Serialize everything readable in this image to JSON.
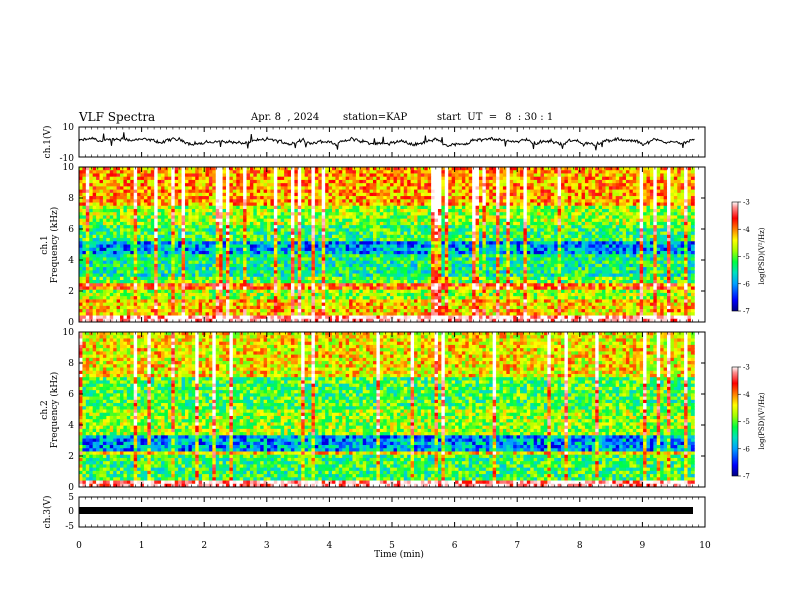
{
  "header": {
    "title": "VLF Spectra",
    "date": "Apr. 8  , 2024",
    "station_label": "station=",
    "station": "KAP",
    "start_label": "start  UT  =",
    "start_time": "8  : 30 : 1"
  },
  "chart_data": [
    {
      "type": "line",
      "panel": "ch1-waveform",
      "ylabel": "ch.1(V)",
      "ylim": [
        -10,
        10
      ],
      "yticks": [
        "10",
        "-10"
      ],
      "x_range_min": [
        0,
        9.83
      ],
      "y_typical_range": [
        -3,
        4
      ]
    },
    {
      "type": "heatmap",
      "panel": "ch1-spectrogram",
      "ylabel_lines": [
        "ch.1",
        "Frequency  (kHz)"
      ],
      "ylim": [
        0,
        10
      ],
      "yticks": [
        "0",
        "2",
        "4",
        "6",
        "8",
        "10"
      ],
      "bands_khz": [
        {
          "from": 0,
          "to": 0.5,
          "level": -3.2
        },
        {
          "from": 0.5,
          "to": 1.4,
          "level": -4.5
        },
        {
          "from": 1.4,
          "to": 2.0,
          "level": -5.0
        },
        {
          "from": 2.0,
          "to": 2.4,
          "level": -4.1
        },
        {
          "from": 2.4,
          "to": 3.0,
          "level": -5.2
        },
        {
          "from": 3.0,
          "to": 4.4,
          "level": -5.6
        },
        {
          "from": 4.4,
          "to": 5.3,
          "level": -6.1
        },
        {
          "from": 5.3,
          "to": 6.2,
          "level": -5.4
        },
        {
          "from": 6.2,
          "to": 7.5,
          "level": -5.0
        },
        {
          "from": 7.5,
          "to": 10,
          "level": -4.3
        }
      ],
      "colorbar": {
        "label": "log(PSD)(V²/Hz)",
        "ticks": [
          "-3",
          "-4",
          "-5",
          "-6",
          "-7"
        ],
        "range": [
          -7,
          -3
        ]
      }
    },
    {
      "type": "heatmap",
      "panel": "ch2-spectrogram",
      "ylabel_lines": [
        "ch.2",
        "Frequency  (kHz)"
      ],
      "ylim": [
        0,
        10
      ],
      "yticks": [
        "0",
        "2",
        "4",
        "6",
        "8",
        "10"
      ],
      "bands_khz": [
        {
          "from": 0,
          "to": 0.4,
          "level": -3.3
        },
        {
          "from": 0.4,
          "to": 2.0,
          "level": -5.4
        },
        {
          "from": 2.0,
          "to": 2.3,
          "level": -4.6
        },
        {
          "from": 2.3,
          "to": 3.4,
          "level": -6.1
        },
        {
          "from": 3.4,
          "to": 5.0,
          "level": -5.0
        },
        {
          "from": 5.0,
          "to": 7.0,
          "level": -5.3
        },
        {
          "from": 7.0,
          "to": 10,
          "level": -4.6
        }
      ],
      "colorbar": {
        "label": "log(PSD)(V²/Hz)",
        "ticks": [
          "-3",
          "-4",
          "-5",
          "-6",
          "-7"
        ],
        "range": [
          -7,
          -3
        ]
      }
    },
    {
      "type": "line",
      "panel": "ch3-waveform",
      "ylabel": "ch.3(V)",
      "ylim": [
        -5,
        5
      ],
      "yticks": [
        "5",
        "0",
        "-5"
      ],
      "x_range_min": [
        0,
        9.83
      ],
      "y_constant_band": [
        -0.5,
        0.5
      ]
    }
  ],
  "x_axis": {
    "label": "Time  (min)",
    "ticks": [
      "0",
      "1",
      "2",
      "3",
      "4",
      "5",
      "6",
      "7",
      "8",
      "9",
      "10"
    ],
    "range": [
      0,
      10
    ]
  },
  "colors": {
    "ramp": [
      "#000080",
      "#0000ff",
      "#00a0ff",
      "#00e0c0",
      "#00ff40",
      "#a0ff00",
      "#ffff00",
      "#ff8000",
      "#ff0000",
      "#ff9090",
      "#ffffff"
    ]
  }
}
